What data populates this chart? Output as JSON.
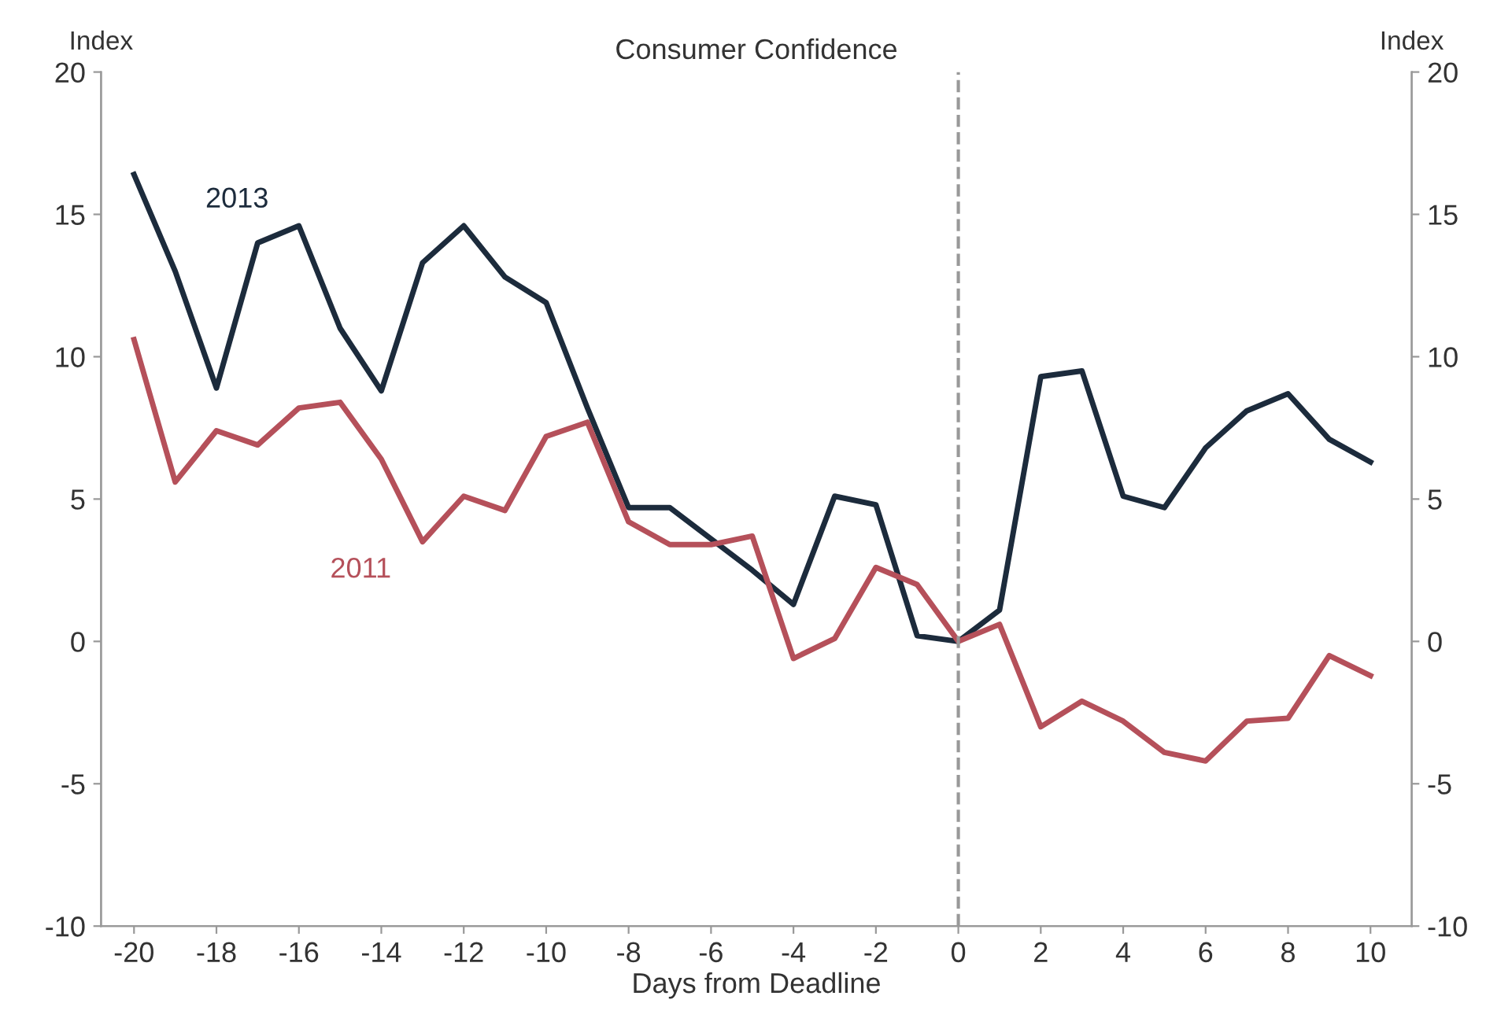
{
  "chart_data": {
    "type": "line",
    "title": "Consumer Confidence",
    "xlabel": "Days from Deadline",
    "ylabel": "Index",
    "y2label": "Index",
    "x": [
      -20,
      -19,
      -18,
      -17,
      -16,
      -15,
      -14,
      -13,
      -12,
      -11,
      -10,
      -9,
      -8,
      -7,
      -6,
      -5,
      -4,
      -3,
      -2,
      -1,
      0,
      1,
      2,
      3,
      4,
      5,
      6,
      7,
      8,
      9,
      10
    ],
    "series": [
      {
        "name": "2013",
        "color": "#1c2b3c",
        "values": [
          16.4,
          13,
          8.9,
          14,
          14.6,
          11,
          8.8,
          13.3,
          14.6,
          12.8,
          11.9,
          8.2,
          4.7,
          4.7,
          3.6,
          2.5,
          1.3,
          5.1,
          4.8,
          0.2,
          0,
          1.1,
          9.3,
          9.5,
          5.1,
          4.7,
          6.8,
          8.1,
          8.7,
          7.1,
          6.3
        ]
      },
      {
        "name": "2011",
        "color": "#b5505a",
        "values": [
          10.6,
          5.6,
          7.4,
          6.9,
          8.2,
          8.4,
          6.4,
          3.5,
          5.1,
          4.6,
          7.2,
          7.7,
          4.2,
          3.4,
          3.4,
          3.7,
          -0.6,
          0.1,
          2.6,
          2.0,
          0,
          0.6,
          -3.0,
          -2.1,
          -2.8,
          -3.9,
          -4.2,
          -2.8,
          -2.7,
          -0.5,
          -1.2
        ]
      }
    ],
    "xlim": [
      -20.8,
      11
    ],
    "xticks": [
      -20,
      -18,
      -16,
      -14,
      -12,
      -10,
      -8,
      -6,
      -4,
      -2,
      0,
      2,
      4,
      6,
      8,
      10
    ],
    "ylim": [
      -10,
      20
    ],
    "yticks": [
      -10,
      -5,
      0,
      5,
      10,
      15,
      20
    ],
    "y2lim": [
      -10,
      20
    ],
    "y2ticks": [
      -10,
      -5,
      0,
      5,
      10,
      15,
      20
    ],
    "ref_lines": [
      {
        "axis": "x",
        "value": 0,
        "color": "#999999",
        "line_style": "dashed"
      }
    ],
    "grid": false,
    "legend": false,
    "marker": "none",
    "line_style": "solid"
  }
}
